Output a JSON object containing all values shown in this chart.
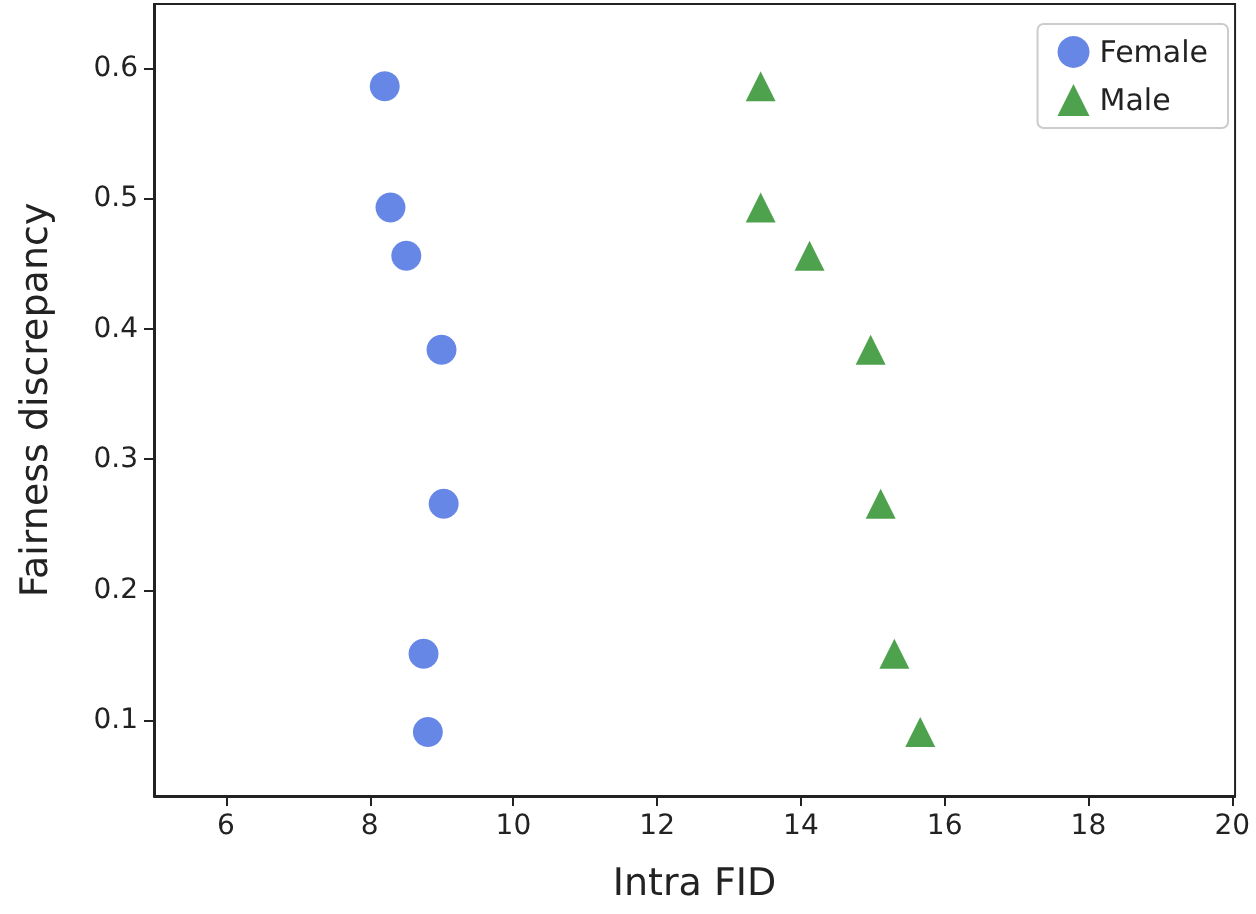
{
  "chart_data": {
    "type": "scatter",
    "xlabel": "Intra FID",
    "ylabel": "Fairness discrepancy",
    "xlim": [
      5,
      20.04
    ],
    "xticks": [
      6,
      8,
      10,
      12,
      14,
      16,
      18,
      20
    ],
    "ylim": [
      0.042,
      0.649
    ],
    "yticks": [
      0.1,
      0.2,
      0.3,
      0.4,
      0.5,
      0.6
    ],
    "grid": false,
    "legend": "top right",
    "series": [
      {
        "name": "Female",
        "color": "#4169e1",
        "marker": "circle",
        "x": [
          8.21,
          8.29,
          8.51,
          9.0,
          9.03,
          8.75,
          8.81
        ],
        "values": [
          0.586,
          0.493,
          0.456,
          0.384,
          0.266,
          0.151,
          0.091
        ]
      },
      {
        "name": "Male",
        "color": "#228b22",
        "marker": "triangle",
        "x": [
          13.44,
          13.44,
          14.12,
          14.97,
          15.11,
          15.3,
          15.66
        ],
        "values": [
          0.586,
          0.493,
          0.456,
          0.384,
          0.266,
          0.151,
          0.091
        ]
      }
    ]
  }
}
